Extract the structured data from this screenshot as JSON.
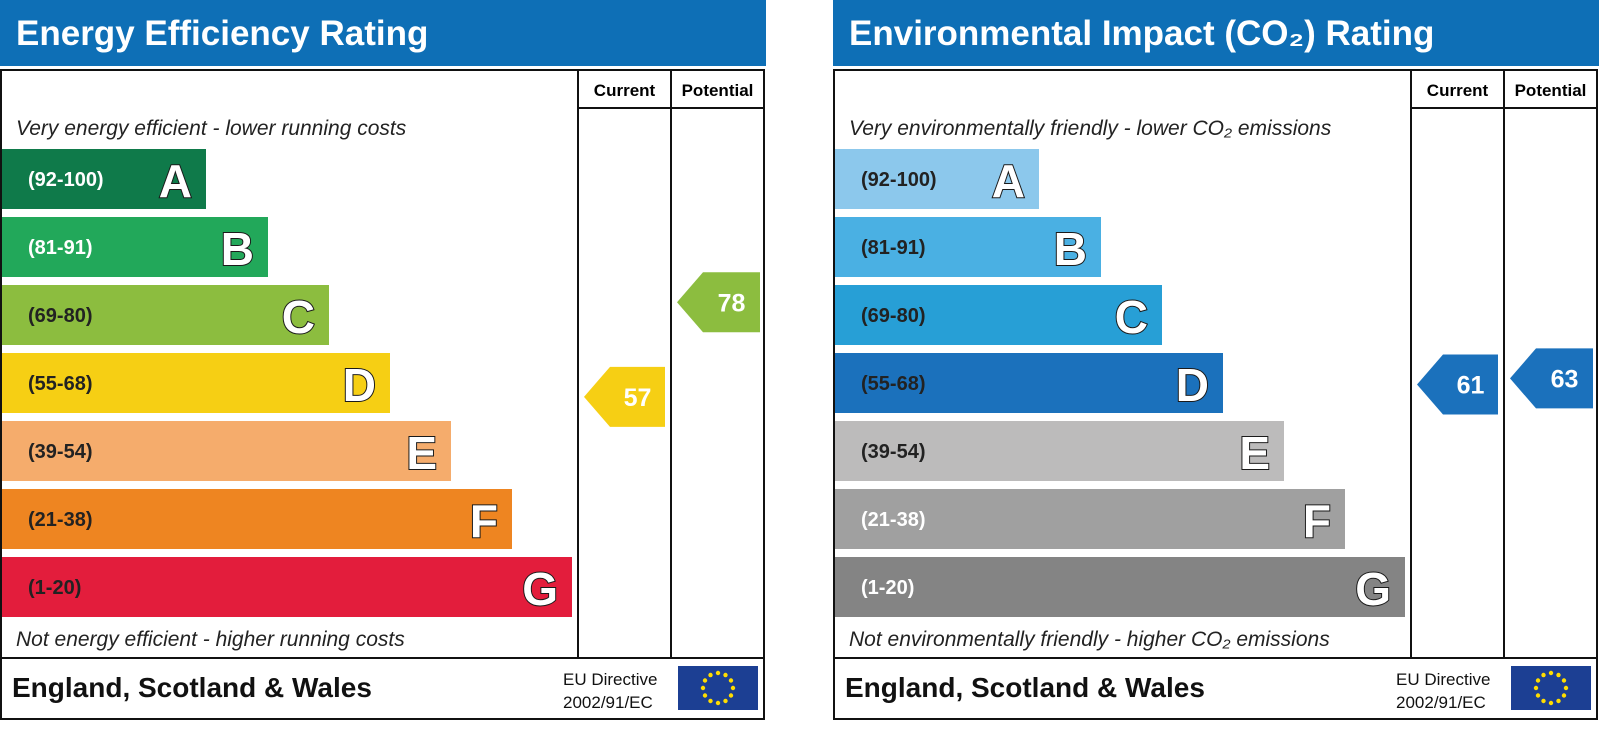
{
  "chart_data": [
    {
      "type": "bar",
      "title": "Energy Efficiency Rating",
      "header_color": "#0e6fb6",
      "columns": {
        "current": "Current",
        "potential": "Potential"
      },
      "top_text": "Very energy efficient - lower running costs",
      "bottom_text": "Not energy efficient - higher running costs",
      "bands": [
        {
          "letter": "A",
          "range": "(92-100)",
          "color": "#0f7a4a",
          "label_color": "#ffffff"
        },
        {
          "letter": "B",
          "range": "(81-91)",
          "color": "#22a85a",
          "label_color": "#ffffff"
        },
        {
          "letter": "C",
          "range": "(69-80)",
          "color": "#8cbd3f",
          "label_color": "#222222"
        },
        {
          "letter": "D",
          "range": "(55-68)",
          "color": "#f6cf14",
          "label_color": "#222222"
        },
        {
          "letter": "E",
          "range": "(39-54)",
          "color": "#f5ac6c",
          "label_color": "#222222"
        },
        {
          "letter": "F",
          "range": "(21-38)",
          "color": "#ee8521",
          "label_color": "#222222"
        },
        {
          "letter": "G",
          "range": "(1-20)",
          "color": "#e31d3c",
          "label_color": "#222222"
        }
      ],
      "current": {
        "value": 57,
        "band": "D",
        "color": "#f6cf14"
      },
      "potential": {
        "value": 78,
        "band": "C",
        "color": "#8cbd3f"
      },
      "footer": "England, Scotland & Wales",
      "directive_line1": "EU Directive",
      "directive_line2": "2002/91/EC"
    },
    {
      "type": "bar",
      "title": "Environmental Impact (CO₂) Rating",
      "header_color": "#0e6fb6",
      "columns": {
        "current": "Current",
        "potential": "Potential"
      },
      "top_text": "Very environmentally friendly - lower CO₂ emissions",
      "bottom_text": "Not environmentally friendly - higher CO₂ emissions",
      "bands": [
        {
          "letter": "A",
          "range": "(92-100)",
          "color": "#8cc8ec",
          "label_color": "#222222"
        },
        {
          "letter": "B",
          "range": "(81-91)",
          "color": "#4ab0e3",
          "label_color": "#222222"
        },
        {
          "letter": "C",
          "range": "(69-80)",
          "color": "#279fd6",
          "label_color": "#222222"
        },
        {
          "letter": "D",
          "range": "(55-68)",
          "color": "#1b71bc",
          "label_color": "#222222"
        },
        {
          "letter": "E",
          "range": "(39-54)",
          "color": "#bcbbbb",
          "label_color": "#222222"
        },
        {
          "letter": "F",
          "range": "(21-38)",
          "color": "#a0a0a0",
          "label_color": "#ffffff"
        },
        {
          "letter": "G",
          "range": "(1-20)",
          "color": "#848484",
          "label_color": "#ffffff"
        }
      ],
      "current": {
        "value": 61,
        "band": "D",
        "color": "#1b71bc"
      },
      "potential": {
        "value": 63,
        "band": "D",
        "color": "#1b71bc"
      },
      "footer": "England, Scotland & Wales",
      "directive_line1": "EU Directive",
      "directive_line2": "2002/91/EC"
    }
  ]
}
